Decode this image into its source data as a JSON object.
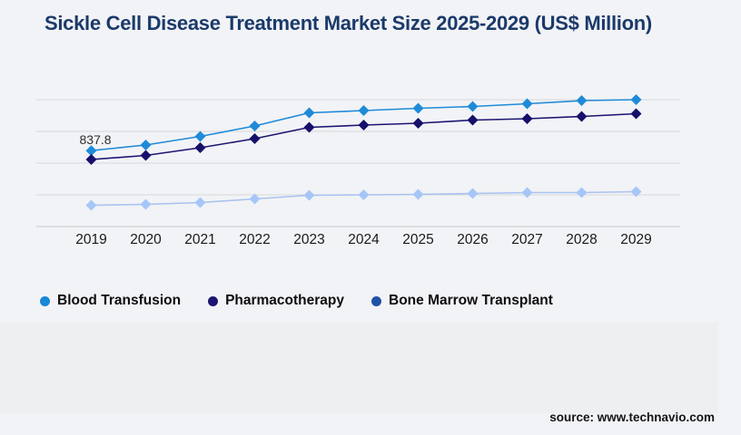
{
  "title": "Sickle Cell Disease Treatment Market Size 2025-2029 (US$ Million)",
  "source_note": "source: www.technavio.com",
  "colors": {
    "background": "#f2f3f6",
    "panel": "#eeeff1",
    "title": "#1b3a6b",
    "gridline": "#d7d7da",
    "axis_line": "#c9c9cc",
    "axis_label": "#1a1a1a",
    "annotation_text": "#2e2e2e",
    "blood_transfusion": "#1e8bd9",
    "pharmacotherapy": "#1b1572",
    "bone_marrow_line": "#a9c2f1",
    "bone_marrow_marker": "#a6c6f7",
    "bone_marrow_legend": "#2051a7"
  },
  "legend": {
    "items": [
      {
        "label": "Blood Transfusion",
        "color": "#1787d8"
      },
      {
        "label": "Pharmacotherapy",
        "color": "#1b1572"
      },
      {
        "label": "Bone Marrow Transplant",
        "color": "#2051a7"
      }
    ]
  },
  "chart_data": {
    "type": "line",
    "title": "Sickle Cell Disease Treatment Market Size 2025-2029 (US$ Million)",
    "categories": [
      "2019",
      "2020",
      "2021",
      "2022",
      "2023",
      "2024",
      "2025",
      "2026",
      "2027",
      "2028",
      "2029"
    ],
    "series": [
      {
        "name": "Blood Transfusion",
        "line_color": "#1e8bd9",
        "marker_color": "#1e8bd9",
        "marker": "diamond",
        "values": [
          837.8,
          900,
          995,
          1110,
          1255,
          1280,
          1305,
          1325,
          1355,
          1390,
          1400
        ]
      },
      {
        "name": "Pharmacotherapy",
        "line_color": "#1b1572",
        "marker_color": "#16106b",
        "marker": "diamond",
        "values": [
          740,
          785,
          870,
          970,
          1095,
          1120,
          1140,
          1175,
          1190,
          1215,
          1245
        ]
      },
      {
        "name": "Bone Marrow Transplant",
        "line_color": "#a9c2f1",
        "marker_color": "#a6c6f7",
        "marker": "diamond",
        "values": [
          235,
          245,
          265,
          305,
          345,
          350,
          355,
          365,
          375,
          375,
          385
        ]
      }
    ],
    "xlabel": "",
    "ylabel": "",
    "ylim": [
      0,
      1400
    ],
    "gridline_step": 350,
    "grid": true,
    "y_axis_labels_visible": false,
    "legend_position": "bottom-left",
    "annotations": [
      {
        "series_index": 0,
        "point_index": 0,
        "text": "837.8"
      }
    ]
  }
}
